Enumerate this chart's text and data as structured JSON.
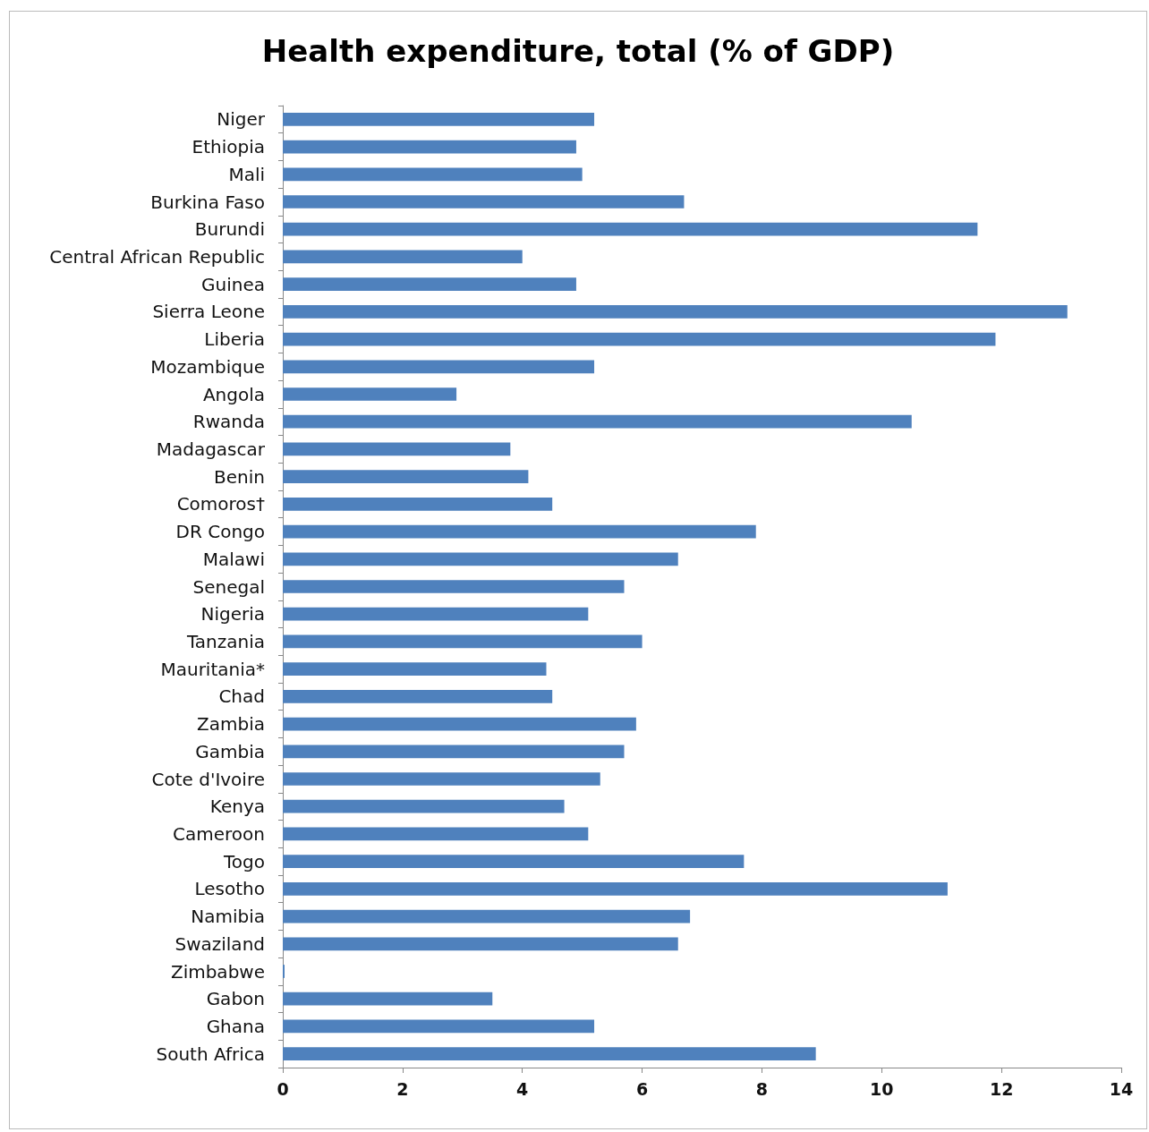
{
  "chart_data": {
    "type": "bar",
    "orientation": "horizontal",
    "title": "Health expenditure, total (% of GDP)",
    "categories": [
      "Niger",
      "Ethiopia",
      "Mali",
      "Burkina Faso",
      "Burundi",
      "Central African Republic",
      "Guinea",
      "Sierra Leone",
      "Liberia",
      "Mozambique",
      "Angola",
      "Rwanda",
      "Madagascar",
      "Benin",
      "Comoros†",
      "DR Congo",
      "Malawi",
      "Senegal",
      "Nigeria",
      "Tanzania",
      "Mauritania*",
      "Chad",
      "Zambia",
      "Gambia",
      "Cote d'Ivoire",
      "Kenya",
      "Cameroon",
      "Togo",
      "Lesotho",
      "Namibia",
      "Swaziland",
      "Zimbabwe",
      "Gabon",
      "Ghana",
      "South Africa"
    ],
    "values": [
      5.2,
      4.9,
      5.0,
      6.7,
      11.6,
      4.0,
      4.9,
      13.1,
      11.9,
      5.2,
      2.9,
      10.5,
      3.8,
      4.1,
      4.5,
      7.9,
      6.6,
      5.7,
      5.1,
      6.0,
      4.4,
      4.5,
      5.9,
      5.7,
      5.3,
      4.7,
      5.1,
      7.7,
      11.1,
      6.8,
      6.6,
      0.03,
      3.5,
      5.2,
      8.9
    ],
    "color": "#4f81bd",
    "xlim": [
      0,
      14
    ],
    "xticks": [
      0,
      2,
      4,
      6,
      8,
      10,
      12,
      14
    ],
    "grid": false
  }
}
